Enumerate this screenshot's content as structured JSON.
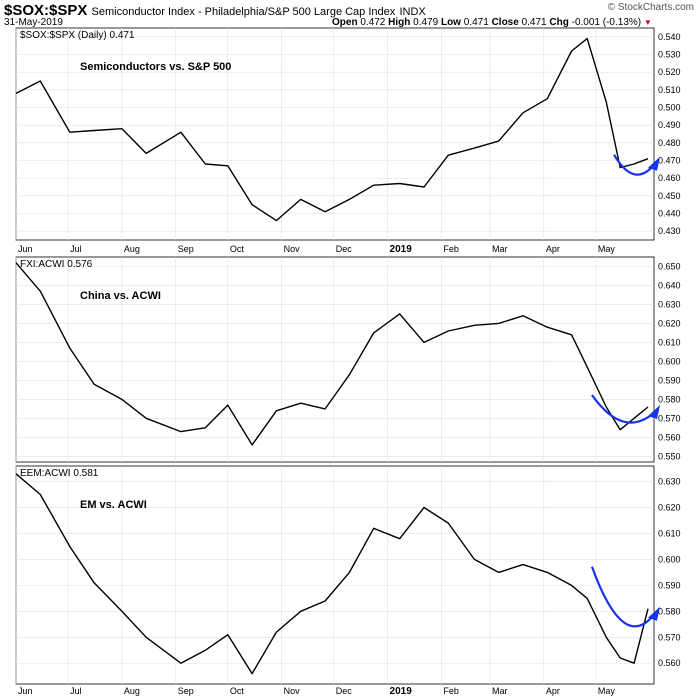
{
  "header": {
    "symbol": "$SOX:$SPX",
    "subtitle": "Semiconductor Index - Philadelphia/S&P 500 Large Cap Index",
    "exchange": "INDX",
    "date": "31-May-2019",
    "open_label": "Open",
    "open": "0.472",
    "high_label": "High",
    "high": "0.479",
    "low_label": "Low",
    "low": "0.471",
    "close_label": "Close",
    "close": "0.471",
    "chg_label": "Chg",
    "chg": "-0.001 (-0.13%)",
    "chg_icon": "triangle-down-icon",
    "credit": "© StockCharts.com"
  },
  "colors": {
    "price_line": "#000000",
    "annotation_arc": "#1a33e6",
    "grid": "#e0e0e0",
    "down": "#b0102a"
  },
  "chart_data": [
    {
      "type": "line",
      "legend": "$SOX:$SPX (Daily) 0.471",
      "annotation": "Semiconductors vs. S&P 500",
      "x_ticks": [
        "Jun",
        "Jul",
        "Aug",
        "Sep",
        "Oct",
        "Nov",
        "Dec",
        "2019",
        "Feb",
        "Mar",
        "Apr",
        "May"
      ],
      "y_ticks": [
        "0.540",
        "0.530",
        "0.520",
        "0.510",
        "0.500",
        "0.490",
        "0.480",
        "0.470",
        "0.460",
        "0.450",
        "0.440",
        "0.430"
      ],
      "ylim": [
        0.425,
        0.545
      ],
      "x": [
        "2018-06-01",
        "2018-06-15",
        "2018-07-02",
        "2018-07-16",
        "2018-08-01",
        "2018-08-15",
        "2018-09-04",
        "2018-09-18",
        "2018-10-01",
        "2018-10-15",
        "2018-10-29",
        "2018-11-12",
        "2018-11-26",
        "2018-12-10",
        "2018-12-24",
        "2019-01-08",
        "2019-01-22",
        "2019-02-05",
        "2019-02-20",
        "2019-03-06",
        "2019-03-20",
        "2019-04-03",
        "2019-04-17",
        "2019-04-26",
        "2019-05-07",
        "2019-05-15",
        "2019-05-23",
        "2019-05-31"
      ],
      "y": [
        0.508,
        0.515,
        0.486,
        0.487,
        0.488,
        0.474,
        0.486,
        0.468,
        0.467,
        0.445,
        0.436,
        0.448,
        0.441,
        0.448,
        0.456,
        0.457,
        0.455,
        0.473,
        0.477,
        0.481,
        0.497,
        0.505,
        0.532,
        0.539,
        0.503,
        0.466,
        0.468,
        0.471
      ]
    },
    {
      "type": "line",
      "legend": "FXI:ACWI 0.576",
      "annotation": "China vs. ACWI",
      "x_ticks": [],
      "y_ticks": [
        "0.650",
        "0.640",
        "0.630",
        "0.620",
        "0.610",
        "0.600",
        "0.590",
        "0.580",
        "0.570",
        "0.560",
        "0.550"
      ],
      "ylim": [
        0.547,
        0.655
      ],
      "x": [
        "2018-06-01",
        "2018-06-15",
        "2018-07-02",
        "2018-07-16",
        "2018-08-01",
        "2018-08-15",
        "2018-09-04",
        "2018-09-18",
        "2018-10-01",
        "2018-10-15",
        "2018-10-29",
        "2018-11-12",
        "2018-11-26",
        "2018-12-10",
        "2018-12-24",
        "2019-01-08",
        "2019-01-22",
        "2019-02-05",
        "2019-02-20",
        "2019-03-06",
        "2019-03-20",
        "2019-04-03",
        "2019-04-17",
        "2019-04-26",
        "2019-05-07",
        "2019-05-15",
        "2019-05-23",
        "2019-05-31"
      ],
      "y": [
        0.652,
        0.637,
        0.607,
        0.588,
        0.58,
        0.57,
        0.563,
        0.565,
        0.577,
        0.556,
        0.574,
        0.578,
        0.575,
        0.593,
        0.615,
        0.625,
        0.61,
        0.616,
        0.619,
        0.62,
        0.624,
        0.618,
        0.614,
        0.597,
        0.576,
        0.564,
        0.57,
        0.576
      ]
    },
    {
      "type": "line",
      "legend": "EEM:ACWI 0.581",
      "annotation": "EM vs. ACWI",
      "x_ticks": [
        "Jun",
        "Jul",
        "Aug",
        "Sep",
        "Oct",
        "Nov",
        "Dec",
        "2019",
        "Feb",
        "Mar",
        "Apr",
        "May"
      ],
      "y_ticks": [
        "0.630",
        "0.620",
        "0.610",
        "0.600",
        "0.590",
        "0.580",
        "0.570",
        "0.560"
      ],
      "ylim": [
        0.552,
        0.636
      ],
      "x": [
        "2018-06-01",
        "2018-06-15",
        "2018-07-02",
        "2018-07-16",
        "2018-08-01",
        "2018-08-15",
        "2018-09-04",
        "2018-09-18",
        "2018-10-01",
        "2018-10-15",
        "2018-10-29",
        "2018-11-12",
        "2018-11-26",
        "2018-12-10",
        "2018-12-24",
        "2019-01-08",
        "2019-01-22",
        "2019-02-05",
        "2019-02-20",
        "2019-03-06",
        "2019-03-20",
        "2019-04-03",
        "2019-04-17",
        "2019-04-26",
        "2019-05-07",
        "2019-05-15",
        "2019-05-23",
        "2019-05-31"
      ],
      "y": [
        0.633,
        0.625,
        0.605,
        0.591,
        0.58,
        0.57,
        0.56,
        0.565,
        0.571,
        0.556,
        0.572,
        0.58,
        0.584,
        0.595,
        0.612,
        0.608,
        0.62,
        0.614,
        0.6,
        0.595,
        0.598,
        0.595,
        0.59,
        0.585,
        0.57,
        0.562,
        0.56,
        0.581
      ]
    }
  ]
}
